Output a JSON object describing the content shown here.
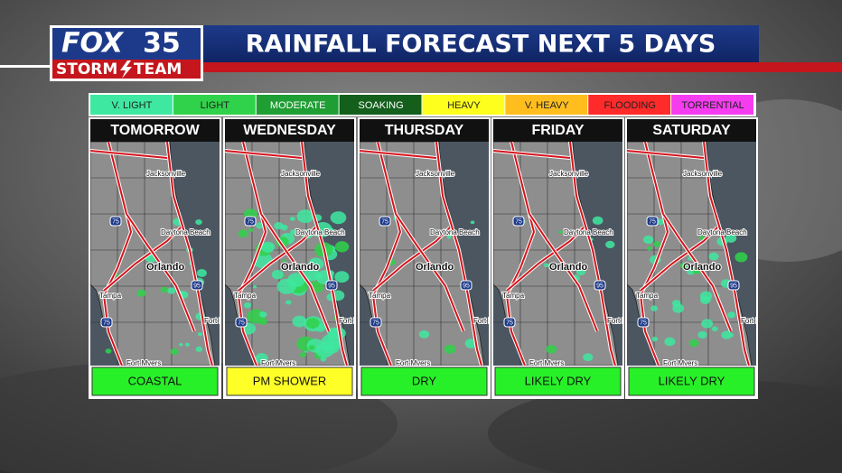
{
  "header": {
    "brand": "FOX",
    "channel": "35",
    "team_left": "STORM",
    "team_right": "TEAM",
    "title": "RAINFALL FORECAST NEXT 5 DAYS"
  },
  "legend": [
    {
      "label": "V. LIGHT",
      "color": "#3ee8a0"
    },
    {
      "label": "LIGHT",
      "color": "#2fd24a"
    },
    {
      "label": "MODERATE",
      "color": "#1f9e34"
    },
    {
      "label": "SOAKING",
      "color": "#145f1c"
    },
    {
      "label": "HEAVY",
      "color": "#ffff1e"
    },
    {
      "label": "V. HEAVY",
      "color": "#ffbe1e"
    },
    {
      "label": "FLOODING",
      "color": "#ff2a2a"
    },
    {
      "label": "TORRENTIAL",
      "color": "#f53cf0"
    }
  ],
  "map_labels": {
    "cities": [
      "Jacksonville",
      "Daytona Beach",
      "Orlando",
      "Tampa",
      "Fort P",
      "Fort Myers"
    ],
    "shields": [
      "75",
      "95"
    ]
  },
  "panels": [
    {
      "day": "TOMORROW",
      "forecast": "COASTAL",
      "color": "#28f028"
    },
    {
      "day": "WEDNESDAY",
      "forecast": "PM SHOWER",
      "color": "#ffff28"
    },
    {
      "day": "THURSDAY",
      "forecast": "DRY",
      "color": "#28f028"
    },
    {
      "day": "FRIDAY",
      "forecast": "LIKELY DRY",
      "color": "#28f028"
    },
    {
      "day": "SATURDAY",
      "forecast": "LIKELY DRY",
      "color": "#28f028"
    }
  ]
}
